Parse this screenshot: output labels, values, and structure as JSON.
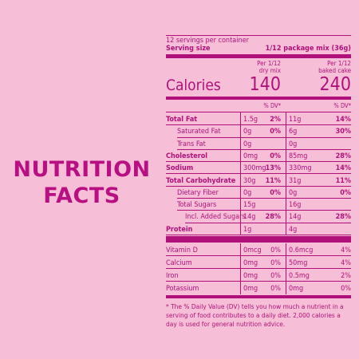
{
  "heading": {
    "line1": "NUTRITION",
    "line2": "FACTS"
  },
  "servings_per_container": "12 servings per container",
  "serving_size_label": "Serving size",
  "serving_size_value": "1/12 package mix (36g)",
  "col1_header": [
    "Per 1/12",
    "dry mix"
  ],
  "col2_header": [
    "Per 1/12",
    "baked cake"
  ],
  "calories_label": "Calories",
  "calories_col1": "140",
  "calories_col2": "240",
  "dv_header": "% DV*",
  "rows": [
    {
      "label": "Total Fat",
      "bold": true,
      "indent": 0,
      "v1": "1.5g",
      "p1": "2%",
      "v2": "11g",
      "p2": "14%",
      "pbold": true
    },
    {
      "label": "Saturated Fat",
      "bold": false,
      "indent": 1,
      "v1": "0g",
      "p1": "0%",
      "v2": "6g",
      "p2": "30%",
      "pbold": true
    },
    {
      "label": "Trans Fat",
      "bold": false,
      "indent": 1,
      "v1": "0g",
      "p1": "",
      "v2": "0g",
      "p2": "",
      "pbold": true
    },
    {
      "label": "Cholesterol",
      "bold": true,
      "indent": 0,
      "v1": "0mg",
      "p1": "0%",
      "v2": "85mg",
      "p2": "28%",
      "pbold": true
    },
    {
      "label": "Sodium",
      "bold": true,
      "indent": 0,
      "v1": "300mg",
      "p1": "13%",
      "v2": "330mg",
      "p2": "14%",
      "pbold": true
    },
    {
      "label": "Total Carbohydrate",
      "bold": true,
      "indent": 0,
      "v1": "30g",
      "p1": "11%",
      "v2": "31g",
      "p2": "11%",
      "pbold": true
    },
    {
      "label": "Dietary Fiber",
      "bold": false,
      "indent": 1,
      "v1": "0g",
      "p1": "0%",
      "v2": "0g",
      "p2": "0%",
      "pbold": true
    },
    {
      "label": "Total Sugars",
      "bold": false,
      "indent": 1,
      "v1": "15g",
      "p1": "",
      "v2": "16g",
      "p2": "",
      "pbold": true
    },
    {
      "label": "Incl. Added Sugars",
      "bold": false,
      "indent": 2,
      "v1": "14g",
      "p1": "28%",
      "v2": "14g",
      "p2": "28%",
      "pbold": true
    },
    {
      "label": "Protein",
      "bold": true,
      "indent": 0,
      "v1": "1g",
      "p1": "",
      "v2": "4g",
      "p2": "",
      "pbold": true
    }
  ],
  "micros": [
    {
      "label": "Vitamin D",
      "v1": "0mcg",
      "p1": "0%",
      "v2": "0.6mcg",
      "p2": "4%"
    },
    {
      "label": "Calcium",
      "v1": "0mg",
      "p1": "0%",
      "v2": "50mg",
      "p2": "4%"
    },
    {
      "label": "Iron",
      "v1": "0mg",
      "p1": "0%",
      "v2": "0.5mg",
      "p2": "2%"
    },
    {
      "label": "Potassium",
      "v1": "0mg",
      "p1": "0%",
      "v2": "0mg",
      "p2": "0%"
    }
  ],
  "footnote": "* The % Daily Value (DV) tells you how much a nutrient in a serving of food contributes to a daily diet. 2,000 calories a day is used for general nutrition advice.",
  "colors": {
    "background": "#f7bfd7",
    "accent": "#b0107a",
    "heading": "#b80f83"
  }
}
